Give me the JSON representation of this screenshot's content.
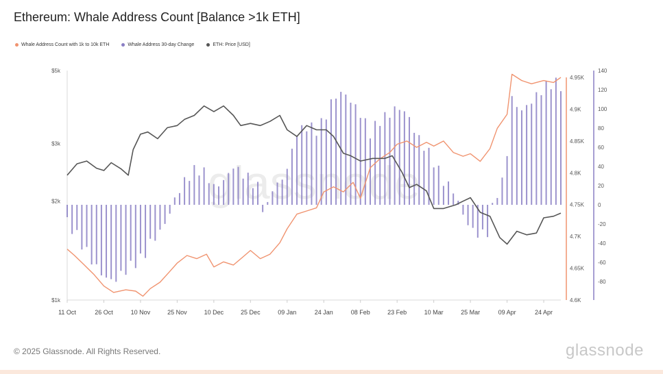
{
  "header": {
    "title": "Ethereum: Whale Address Count [Balance >1k ETH]"
  },
  "footer": {
    "copyright": "© 2025 Glassnode. All Rights Reserved.",
    "brand": "glassnode"
  },
  "watermark": "glassnode",
  "colors": {
    "count": "#f0936f",
    "change": "#8a7fc4",
    "price": "#555555"
  },
  "chart_data": {
    "type": "line",
    "title": "Ethereum: Whale Address Count [Balance >1k ETH]",
    "legend_position": "top-left",
    "grid": false,
    "x_labels": [
      "11 Oct",
      "26 Oct",
      "10 Nov",
      "25 Nov",
      "10 Dec",
      "25 Dec",
      "09 Jan",
      "24 Jan",
      "08 Feb",
      "23 Feb",
      "10 Mar",
      "25 Mar",
      "09 Apr",
      "24 Apr"
    ],
    "x_range": [
      "2024-10-11",
      "2025-05-01"
    ],
    "axes": {
      "price_left": {
        "scale": "log",
        "range": [
          1000,
          5000
        ],
        "ticks": [
          1000,
          2000,
          3000,
          5000
        ],
        "tick_labels": [
          "$1k",
          "$2k",
          "$3k",
          "$5k"
        ]
      },
      "count_right": {
        "range": [
          4600,
          4960
        ],
        "ticks": [
          4600,
          4650,
          4700,
          4750,
          4800,
          4850,
          4900,
          4950
        ],
        "tick_labels": [
          "4.6K",
          "4.65K",
          "4.7K",
          "4.75K",
          "4.8K",
          "4.85K",
          "4.9K",
          "4.95K"
        ]
      },
      "change_right": {
        "range": [
          -90,
          140
        ],
        "ticks": [
          -80,
          -60,
          -40,
          -20,
          0,
          20,
          40,
          60,
          80,
          100,
          120,
          140
        ],
        "tick_labels": [
          "-80",
          "-60",
          "-40",
          "-20",
          "0",
          "20",
          "40",
          "60",
          "80",
          "100",
          "120",
          "140"
        ]
      }
    },
    "series": [
      {
        "name": "Whale Address Count with 1k to 10k ETH",
        "kind": "line",
        "axis": "count_right",
        "points": [
          [
            "2024-10-11",
            4680
          ],
          [
            "2024-10-14",
            4670
          ],
          [
            "2024-10-18",
            4655
          ],
          [
            "2024-10-22",
            4640
          ],
          [
            "2024-10-26",
            4622
          ],
          [
            "2024-10-30",
            4612
          ],
          [
            "2024-11-04",
            4616
          ],
          [
            "2024-11-08",
            4614
          ],
          [
            "2024-11-11",
            4606
          ],
          [
            "2024-11-14",
            4618
          ],
          [
            "2024-11-18",
            4628
          ],
          [
            "2024-11-22",
            4645
          ],
          [
            "2024-11-25",
            4658
          ],
          [
            "2024-11-29",
            4670
          ],
          [
            "2024-12-03",
            4665
          ],
          [
            "2024-12-07",
            4672
          ],
          [
            "2024-12-10",
            4652
          ],
          [
            "2024-12-14",
            4660
          ],
          [
            "2024-12-18",
            4655
          ],
          [
            "2024-12-22",
            4668
          ],
          [
            "2024-12-25",
            4678
          ],
          [
            "2024-12-29",
            4665
          ],
          [
            "2025-01-02",
            4672
          ],
          [
            "2025-01-06",
            4690
          ],
          [
            "2025-01-09",
            4712
          ],
          [
            "2025-01-13",
            4735
          ],
          [
            "2025-01-17",
            4740
          ],
          [
            "2025-01-21",
            4745
          ],
          [
            "2025-01-24",
            4770
          ],
          [
            "2025-01-28",
            4778
          ],
          [
            "2025-02-01",
            4770
          ],
          [
            "2025-02-05",
            4785
          ],
          [
            "2025-02-08",
            4760
          ],
          [
            "2025-02-12",
            4808
          ],
          [
            "2025-02-16",
            4822
          ],
          [
            "2025-02-20",
            4832
          ],
          [
            "2025-02-23",
            4845
          ],
          [
            "2025-02-27",
            4850
          ],
          [
            "2025-03-03",
            4840
          ],
          [
            "2025-03-07",
            4848
          ],
          [
            "2025-03-10",
            4842
          ],
          [
            "2025-03-14",
            4850
          ],
          [
            "2025-03-18",
            4832
          ],
          [
            "2025-03-22",
            4826
          ],
          [
            "2025-03-25",
            4830
          ],
          [
            "2025-03-29",
            4818
          ],
          [
            "2025-04-02",
            4838
          ],
          [
            "2025-04-05",
            4870
          ],
          [
            "2025-04-09",
            4892
          ],
          [
            "2025-04-11",
            4955
          ],
          [
            "2025-04-15",
            4945
          ],
          [
            "2025-04-19",
            4940
          ],
          [
            "2025-04-24",
            4945
          ],
          [
            "2025-04-28",
            4942
          ],
          [
            "2025-05-01",
            4950
          ]
        ]
      },
      {
        "name": "Whale Address 30-day Change",
        "kind": "bar",
        "axis": "change_right",
        "points": [
          [
            "2024-10-11",
            -18
          ],
          [
            "2024-10-14",
            -28
          ],
          [
            "2024-10-18",
            -45
          ],
          [
            "2024-10-22",
            -62
          ],
          [
            "2024-10-26",
            -75
          ],
          [
            "2024-10-30",
            -80
          ],
          [
            "2024-11-04",
            -68
          ],
          [
            "2024-11-08",
            -60
          ],
          [
            "2024-11-11",
            -55
          ],
          [
            "2024-11-14",
            -40
          ],
          [
            "2024-11-18",
            -28
          ],
          [
            "2024-11-21",
            -15
          ],
          [
            "2024-11-25",
            12
          ],
          [
            "2024-11-29",
            28
          ],
          [
            "2024-12-03",
            38
          ],
          [
            "2024-12-07",
            32
          ],
          [
            "2024-12-10",
            18
          ],
          [
            "2024-12-14",
            25
          ],
          [
            "2024-12-18",
            40
          ],
          [
            "2024-12-22",
            32
          ],
          [
            "2024-12-25",
            26
          ],
          [
            "2024-12-28",
            18
          ],
          [
            "2024-12-31",
            -12
          ],
          [
            "2025-01-03",
            18
          ],
          [
            "2025-01-06",
            22
          ],
          [
            "2025-01-09",
            38
          ],
          [
            "2025-01-13",
            75
          ],
          [
            "2025-01-17",
            82
          ],
          [
            "2025-01-21",
            78
          ],
          [
            "2025-01-24",
            88
          ],
          [
            "2025-01-28",
            112
          ],
          [
            "2025-02-01",
            118
          ],
          [
            "2025-02-05",
            105
          ],
          [
            "2025-02-08",
            95
          ],
          [
            "2025-02-12",
            75
          ],
          [
            "2025-02-16",
            88
          ],
          [
            "2025-02-20",
            95
          ],
          [
            "2025-02-23",
            102
          ],
          [
            "2025-02-27",
            96
          ],
          [
            "2025-03-03",
            72
          ],
          [
            "2025-03-07",
            58
          ],
          [
            "2025-03-10",
            45
          ],
          [
            "2025-03-14",
            25
          ],
          [
            "2025-03-18",
            15
          ],
          [
            "2025-03-22",
            -10
          ],
          [
            "2025-03-25",
            -25
          ],
          [
            "2025-03-29",
            -32
          ],
          [
            "2025-04-01",
            -28
          ],
          [
            "2025-04-04",
            8
          ],
          [
            "2025-04-08",
            28
          ],
          [
            "2025-04-11",
            110
          ],
          [
            "2025-04-15",
            98
          ],
          [
            "2025-04-19",
            108
          ],
          [
            "2025-04-24",
            122
          ],
          [
            "2025-04-28",
            128
          ],
          [
            "2025-05-01",
            124
          ]
        ]
      },
      {
        "name": "ETH: Price [USD]",
        "kind": "line",
        "axis": "price_left",
        "points": [
          [
            "2024-10-11",
            2400
          ],
          [
            "2024-10-15",
            2600
          ],
          [
            "2024-10-19",
            2650
          ],
          [
            "2024-10-23",
            2520
          ],
          [
            "2024-10-26",
            2480
          ],
          [
            "2024-10-29",
            2620
          ],
          [
            "2024-11-02",
            2510
          ],
          [
            "2024-11-05",
            2400
          ],
          [
            "2024-11-07",
            2870
          ],
          [
            "2024-11-10",
            3200
          ],
          [
            "2024-11-13",
            3250
          ],
          [
            "2024-11-17",
            3100
          ],
          [
            "2024-11-21",
            3350
          ],
          [
            "2024-11-25",
            3400
          ],
          [
            "2024-11-28",
            3550
          ],
          [
            "2024-12-02",
            3650
          ],
          [
            "2024-12-06",
            3900
          ],
          [
            "2024-12-10",
            3750
          ],
          [
            "2024-12-14",
            3900
          ],
          [
            "2024-12-18",
            3650
          ],
          [
            "2024-12-21",
            3400
          ],
          [
            "2024-12-25",
            3450
          ],
          [
            "2024-12-29",
            3400
          ],
          [
            "2025-01-02",
            3500
          ],
          [
            "2025-01-06",
            3650
          ],
          [
            "2025-01-09",
            3300
          ],
          [
            "2025-01-13",
            3150
          ],
          [
            "2025-01-17",
            3400
          ],
          [
            "2025-01-21",
            3300
          ],
          [
            "2025-01-25",
            3300
          ],
          [
            "2025-01-28",
            3150
          ],
          [
            "2025-02-01",
            2800
          ],
          [
            "2025-02-04",
            2750
          ],
          [
            "2025-02-08",
            2650
          ],
          [
            "2025-02-13",
            2700
          ],
          [
            "2025-02-18",
            2700
          ],
          [
            "2025-02-21",
            2750
          ],
          [
            "2025-02-25",
            2450
          ],
          [
            "2025-02-28",
            2200
          ],
          [
            "2025-03-03",
            2250
          ],
          [
            "2025-03-07",
            2150
          ],
          [
            "2025-03-10",
            1900
          ],
          [
            "2025-03-14",
            1900
          ],
          [
            "2025-03-19",
            1950
          ],
          [
            "2025-03-22",
            2000
          ],
          [
            "2025-03-25",
            2050
          ],
          [
            "2025-03-29",
            1850
          ],
          [
            "2025-04-02",
            1800
          ],
          [
            "2025-04-06",
            1550
          ],
          [
            "2025-04-09",
            1480
          ],
          [
            "2025-04-13",
            1620
          ],
          [
            "2025-04-17",
            1580
          ],
          [
            "2025-04-21",
            1600
          ],
          [
            "2025-04-24",
            1780
          ],
          [
            "2025-04-28",
            1800
          ],
          [
            "2025-05-01",
            1840
          ]
        ]
      }
    ]
  }
}
